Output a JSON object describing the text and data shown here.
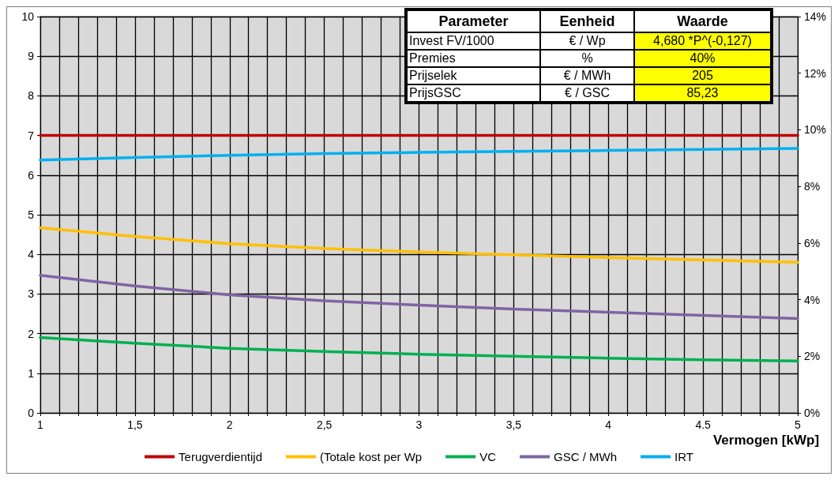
{
  "chart_data": {
    "type": "line",
    "xlabel": "Vermogen [kWp]",
    "x": [
      1,
      1.5,
      2,
      2.5,
      3,
      3.5,
      4,
      4.5,
      5
    ],
    "xlim": [
      1,
      5
    ],
    "xticks": [
      {
        "value": 1,
        "label": "1"
      },
      {
        "value": 1.1,
        "label": null
      },
      {
        "value": 1.2,
        "label": null
      },
      {
        "value": 1.3,
        "label": null
      },
      {
        "value": 1.4,
        "label": null
      },
      {
        "value": 1.5,
        "label": "1,5"
      },
      {
        "value": 1.6,
        "label": null
      },
      {
        "value": 1.7,
        "label": null
      },
      {
        "value": 1.8,
        "label": null
      },
      {
        "value": 1.9,
        "label": null
      },
      {
        "value": 2,
        "label": "2"
      },
      {
        "value": 2.1,
        "label": null
      },
      {
        "value": 2.2,
        "label": null
      },
      {
        "value": 2.3,
        "label": null
      },
      {
        "value": 2.4,
        "label": null
      },
      {
        "value": 2.5,
        "label": "2,5"
      },
      {
        "value": 2.6,
        "label": null
      },
      {
        "value": 2.7,
        "label": null
      },
      {
        "value": 2.8,
        "label": null
      },
      {
        "value": 2.9,
        "label": null
      },
      {
        "value": 3,
        "label": "3"
      },
      {
        "value": 3.1,
        "label": null
      },
      {
        "value": 3.2,
        "label": null
      },
      {
        "value": 3.3,
        "label": null
      },
      {
        "value": 3.4,
        "label": null
      },
      {
        "value": 3.5,
        "label": "3,5"
      },
      {
        "value": 3.6,
        "label": null
      },
      {
        "value": 3.7,
        "label": null
      },
      {
        "value": 3.8,
        "label": null
      },
      {
        "value": 3.9,
        "label": null
      },
      {
        "value": 4,
        "label": "4"
      },
      {
        "value": 4.1,
        "label": null
      },
      {
        "value": 4.2,
        "label": null
      },
      {
        "value": 4.3,
        "label": null
      },
      {
        "value": 4.4,
        "label": null
      },
      {
        "value": 4.5,
        "label": "4.5"
      },
      {
        "value": 4.6,
        "label": null
      },
      {
        "value": 4.7,
        "label": null
      },
      {
        "value": 4.8,
        "label": null
      },
      {
        "value": 4.9,
        "label": null
      },
      {
        "value": 5,
        "label": "5"
      }
    ],
    "ylim": [
      0,
      10
    ],
    "yticks": [
      0,
      1,
      2,
      3,
      4,
      5,
      6,
      7,
      8,
      9,
      10
    ],
    "y2lim": [
      0,
      14
    ],
    "y2ticks": [
      {
        "value": 0,
        "label": "0%"
      },
      {
        "value": 2,
        "label": "2%"
      },
      {
        "value": 4,
        "label": "4%"
      },
      {
        "value": 6,
        "label": "6%"
      },
      {
        "value": 8,
        "label": "8%"
      },
      {
        "value": 10,
        "label": "10%"
      },
      {
        "value": 12,
        "label": "12%"
      },
      {
        "value": 14,
        "label": "14%"
      }
    ],
    "grid": true,
    "legend": "bottom",
    "marker": "none",
    "line_style": "solid",
    "series": [
      {
        "name": "Terugverdientijd",
        "color": "#c00000",
        "values": [
          7,
          7,
          7,
          7,
          7,
          7,
          7,
          7,
          7
        ]
      },
      {
        "name": "(Totale kost per Wp",
        "color": "#ffc000",
        "values": [
          4.67,
          4.45,
          4.27,
          4.15,
          4.06,
          3.99,
          3.92,
          3.86,
          3.8
        ]
      },
      {
        "name": "VC",
        "color": "#00b050",
        "values": [
          1.9,
          1.76,
          1.63,
          1.55,
          1.48,
          1.43,
          1.38,
          1.34,
          1.31
        ]
      },
      {
        "name": "GSC / MWh",
        "color": "#8064a2",
        "values": [
          3.47,
          3.2,
          2.98,
          2.83,
          2.72,
          2.62,
          2.54,
          2.46,
          2.38
        ]
      },
      {
        "name": "IRT",
        "color": "#00b0f0",
        "axis": "y2",
        "values": [
          8.93,
          9.02,
          9.1,
          9.16,
          9.2,
          9.24,
          9.27,
          9.31,
          9.34
        ]
      }
    ],
    "annotations": [
      "Parameter",
      "Eenheid",
      "Waarde",
      "Invest FV/1000",
      "€ / Wp",
      "4,680 *P^(-0,127)",
      "Premies",
      "%",
      "40%",
      "Prijselek",
      "€ / MWh",
      "205",
      "PrijsGSC",
      "€ / GSC",
      "85,23"
    ]
  }
}
